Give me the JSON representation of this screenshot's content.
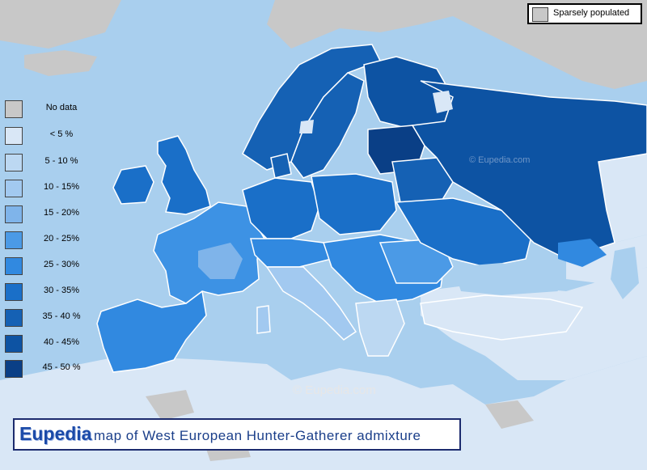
{
  "map": {
    "title_brand": "Eupedia",
    "title_text": "map of West  European  Hunter-Gatherer  admixture",
    "watermark": "©  Eupedia.com",
    "watermark_small": "© Eupedia.com"
  },
  "sparse_legend": {
    "label": "Sparsely populated",
    "color": "#c8c8c8"
  },
  "legend": {
    "items": [
      {
        "label": "No data",
        "color": "#c8c8c8"
      },
      {
        "label": "< 5 %",
        "color": "#d9e7f6"
      },
      {
        "label": "5 - 10 %",
        "color": "#bcd8f2"
      },
      {
        "label": "10 - 15%",
        "color": "#a2c9f0"
      },
      {
        "label": "15 - 20%",
        "color": "#7fb4ea"
      },
      {
        "label": "20 - 25%",
        "color": "#4b9ae6"
      },
      {
        "label": "25 - 30%",
        "color": "#3189e0"
      },
      {
        "label": "30 - 35%",
        "color": "#1a6fc8"
      },
      {
        "label": "35 - 40 %",
        "color": "#1561b4"
      },
      {
        "label": "40 - 45%",
        "color": "#0d53a3"
      },
      {
        "label": "45 - 50 %",
        "color": "#0a3f86"
      }
    ]
  },
  "colors": {
    "sea": "#a9cfee",
    "land_low": "#d9e7f6",
    "sparse": "#c8c8c8",
    "border": "#ffffff"
  }
}
